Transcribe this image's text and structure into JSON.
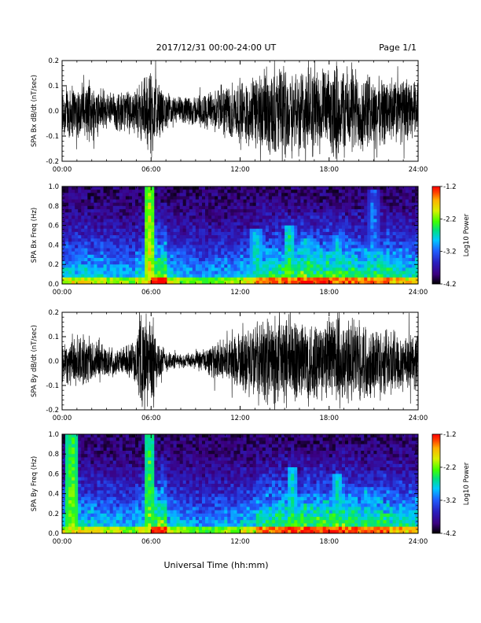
{
  "header": {
    "title": "2017/12/31  00:00-24:00 UT",
    "page": "Page 1/1"
  },
  "colors": {
    "trace": "#000000",
    "colormap": [
      "#000000",
      "#3b0080",
      "#2a1fbf",
      "#1f5fff",
      "#00c8ff",
      "#00e080",
      "#40ff00",
      "#d8f000",
      "#ffb000",
      "#ff4000",
      "#ff0000"
    ]
  },
  "chart_data": [
    {
      "type": "line",
      "title": "",
      "xlabel": "",
      "ylabel": "SPA Bx dB/dt (nT/sec)",
      "xlim": [
        0,
        24
      ],
      "ylim": [
        -0.2,
        0.2
      ],
      "x_tick_labels": [
        "00:00",
        "06:00",
        "12:00",
        "18:00",
        "24:00"
      ],
      "y_tick_labels": [
        "0.2",
        "0.1",
        "0.0",
        "-0.1",
        "-0.2"
      ],
      "envelope_hours": [
        0,
        1,
        2,
        3,
        4,
        5,
        5.7,
        6,
        6.5,
        7,
        8,
        9,
        10,
        11,
        12,
        13,
        14,
        15,
        16,
        17,
        18,
        18.5,
        19,
        20,
        21,
        22,
        23,
        24
      ],
      "envelope_amplitude": [
        0.14,
        0.12,
        0.13,
        0.09,
        0.09,
        0.1,
        0.17,
        0.22,
        0.12,
        0.08,
        0.06,
        0.07,
        0.09,
        0.12,
        0.14,
        0.17,
        0.19,
        0.2,
        0.2,
        0.2,
        0.17,
        0.22,
        0.2,
        0.19,
        0.15,
        0.15,
        0.14,
        0.13
      ]
    },
    {
      "type": "heatmap",
      "title": "",
      "xlabel": "",
      "ylabel": "SPA Bx Freq (Hz)",
      "xlim": [
        0,
        24
      ],
      "ylim": [
        0.0,
        1.0
      ],
      "x_tick_labels": [
        "00:00",
        "06:00",
        "12:00",
        "18:00",
        "24:00"
      ],
      "y_tick_labels": [
        "1.0",
        "0.8",
        "0.6",
        "0.4",
        "0.2",
        "0.0"
      ],
      "colorbar": {
        "label": "Log10 Power",
        "range": [
          -4.2,
          -1.2
        ],
        "tick_labels": [
          "-1.2",
          "-2.2",
          "-3.2",
          "-4.2"
        ]
      },
      "features": [
        {
          "hour": 5.9,
          "fmax": 1.0,
          "power": -2.0
        },
        {
          "hour": 13.1,
          "fmax": 0.55,
          "power": -2.6
        },
        {
          "hour": 15.3,
          "fmax": 0.6,
          "power": -2.5
        },
        {
          "hour": 16.5,
          "fmax": 0.45,
          "power": -2.6
        },
        {
          "hour": 18.6,
          "fmax": 0.5,
          "power": -2.7
        },
        {
          "hour": 21.0,
          "fmax": 0.95,
          "power": -3.0
        }
      ]
    },
    {
      "type": "line",
      "title": "",
      "xlabel": "",
      "ylabel": "SPA By dB/dt (nT/sec)",
      "xlim": [
        0,
        24
      ],
      "ylim": [
        -0.2,
        0.2
      ],
      "x_tick_labels": [
        "00:00",
        "06:00",
        "12:00",
        "18:00",
        "24:00"
      ],
      "y_tick_labels": [
        "0.2",
        "0.1",
        "0.0",
        "-0.1",
        "-0.2"
      ],
      "envelope_hours": [
        0,
        1,
        2,
        3,
        4,
        5,
        5.3,
        6,
        6.5,
        7,
        8,
        9,
        10,
        11,
        12,
        13,
        14,
        15,
        16,
        17,
        18,
        18.5,
        19,
        20,
        21,
        22,
        23,
        24
      ],
      "envelope_amplitude": [
        0.1,
        0.12,
        0.1,
        0.07,
        0.06,
        0.09,
        0.22,
        0.22,
        0.1,
        0.05,
        0.03,
        0.04,
        0.07,
        0.1,
        0.13,
        0.18,
        0.2,
        0.21,
        0.2,
        0.2,
        0.18,
        0.23,
        0.2,
        0.19,
        0.16,
        0.15,
        0.14,
        0.13
      ]
    },
    {
      "type": "heatmap",
      "title": "",
      "xlabel": "Universal Time (hh:mm)",
      "ylabel": "SPA By Freq (Hz)",
      "xlim": [
        0,
        24
      ],
      "ylim": [
        0.0,
        1.0
      ],
      "x_tick_labels": [
        "00:00",
        "06:00",
        "12:00",
        "18:00",
        "24:00"
      ],
      "y_tick_labels": [
        "1.0",
        "0.8",
        "0.6",
        "0.4",
        "0.2",
        "0.0"
      ],
      "colorbar": {
        "label": "Log10 Power",
        "range": [
          -4.2,
          -1.2
        ],
        "tick_labels": [
          "-1.2",
          "-2.2",
          "-3.2",
          "-4.2"
        ]
      },
      "features": [
        {
          "hour": 0.65,
          "fmax": 1.0,
          "power": -2.2
        },
        {
          "hour": 5.9,
          "fmax": 1.0,
          "power": -2.3
        },
        {
          "hour": 15.5,
          "fmax": 0.65,
          "power": -2.6
        },
        {
          "hour": 18.6,
          "fmax": 0.6,
          "power": -2.6
        },
        {
          "hour": 20.5,
          "fmax": 0.45,
          "power": -2.8
        }
      ]
    }
  ]
}
